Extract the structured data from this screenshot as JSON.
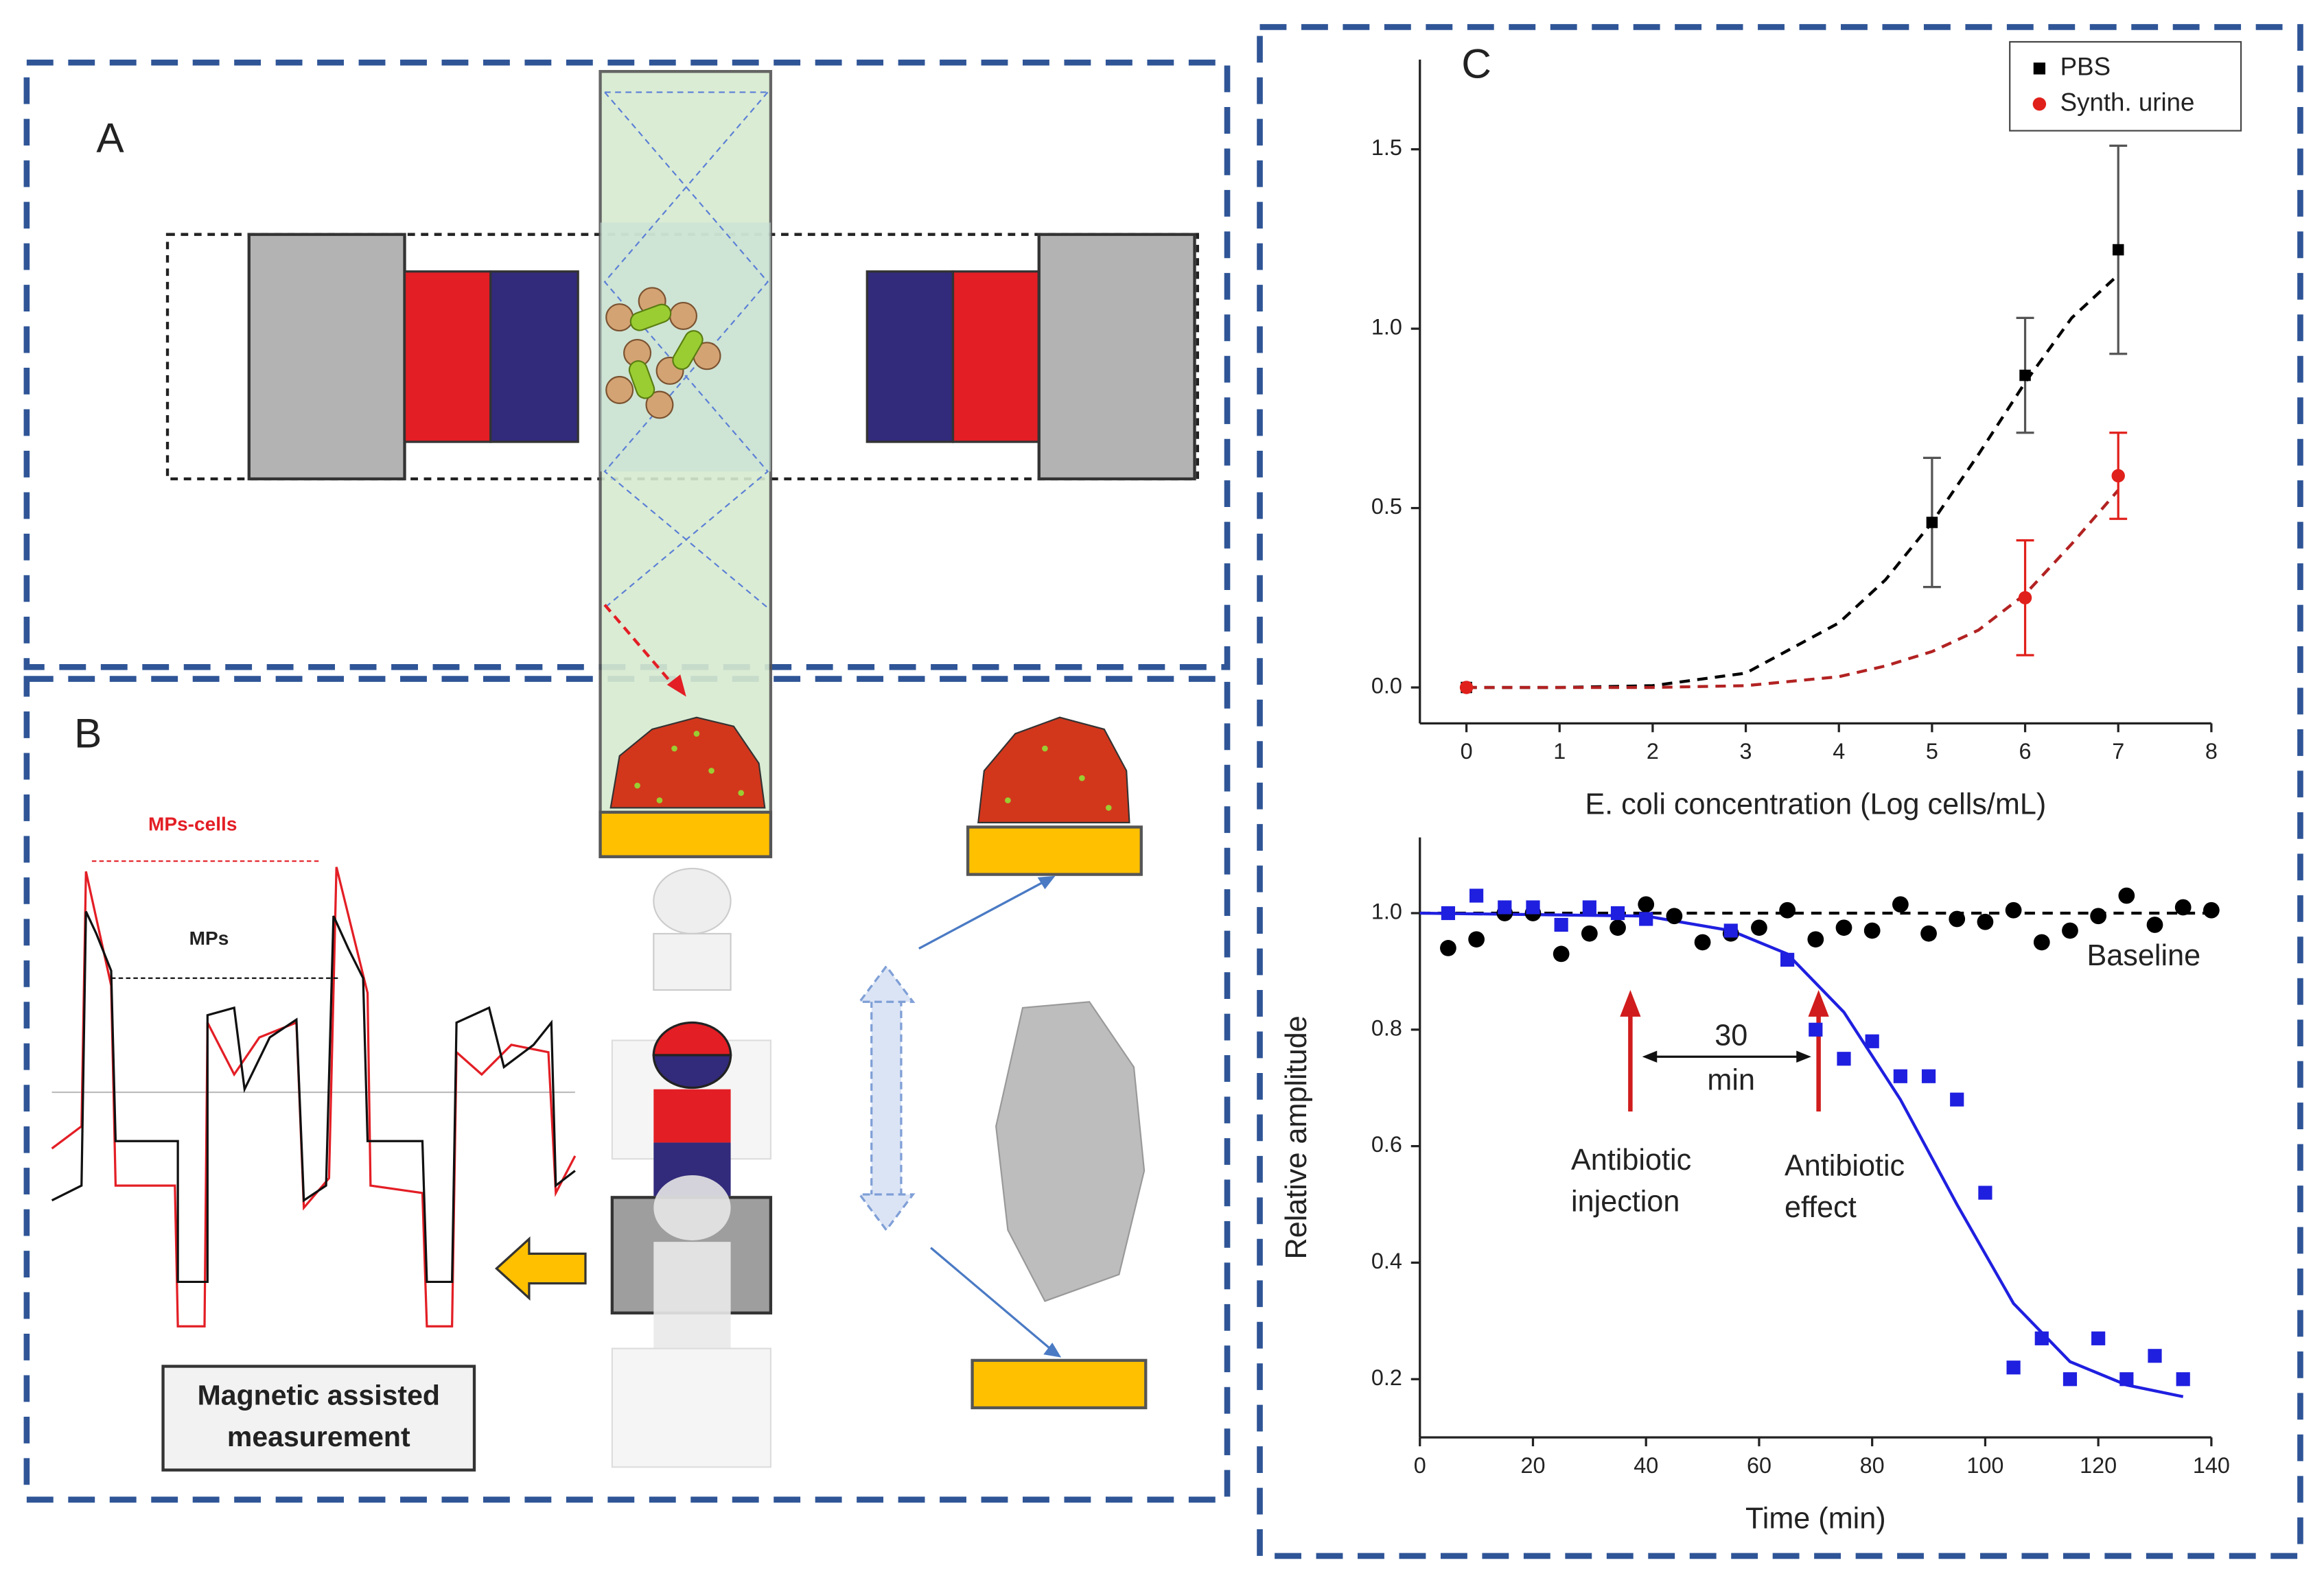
{
  "panels": {
    "a": "A",
    "b": "B",
    "c": "C"
  },
  "diagram": {
    "mps_cells": "MPs-cells",
    "mps": "MPs",
    "measurement": [
      "Magnetic assisted",
      "measurement"
    ]
  },
  "chart_data": [
    {
      "type": "scatter",
      "xlabel": "E. coli concentration (Log cells/mL)",
      "xlim": [
        -0.5,
        8
      ],
      "ylim": [
        -0.1,
        1.75
      ],
      "xticks": [
        0,
        1,
        2,
        3,
        4,
        5,
        6,
        7,
        8
      ],
      "yticks": [
        {
          "value": 0,
          "label": "0.0"
        },
        0.5,
        {
          "value": 1,
          "label": "1.0"
        },
        1.5
      ],
      "legend": "upper right",
      "series": [
        {
          "name": "PBS",
          "color": "#000000",
          "marker": "square",
          "x": [
            0,
            5,
            6,
            7
          ],
          "values": [
            0,
            0.46,
            0.87,
            1.22
          ],
          "errors": [
            0,
            0.18,
            0.16,
            0.29
          ]
        },
        {
          "name": "Synth. urine",
          "color": "#e0201b",
          "marker": "circle",
          "x": [
            0,
            6,
            7
          ],
          "values": [
            0,
            0.25,
            0.59
          ],
          "errors": [
            0,
            0.16,
            0.12
          ]
        }
      ],
      "lines": [
        {
          "color": "#000000",
          "dashed": true,
          "x": [
            0,
            1,
            2,
            3,
            4,
            4.5,
            5,
            5.5,
            6,
            6.5,
            7
          ],
          "values": [
            0,
            0,
            0.005,
            0.04,
            0.18,
            0.3,
            0.46,
            0.65,
            0.85,
            1.03,
            1.15
          ]
        },
        {
          "color": "#b22222",
          "dashed": true,
          "x": [
            0,
            1,
            2,
            3,
            4,
            4.5,
            5,
            5.5,
            6,
            6.5,
            7
          ],
          "values": [
            0,
            0,
            0,
            0.005,
            0.03,
            0.06,
            0.1,
            0.16,
            0.26,
            0.4,
            0.55
          ]
        }
      ]
    },
    {
      "type": "scatter",
      "xlabel": "Time (min)",
      "ylabel": "Relative amplitude",
      "xlim": [
        0,
        140
      ],
      "ylim": [
        0.1,
        1.13
      ],
      "xticks": [
        0,
        20,
        40,
        60,
        80,
        100,
        120,
        140
      ],
      "yticks": [
        0.2,
        0.4,
        0.6,
        0.8,
        {
          "value": 1,
          "label": "1.0"
        }
      ],
      "annotations": {
        "baseline": "Baseline",
        "interval": [
          "30",
          "min"
        ],
        "injection": [
          "Antibiotic",
          "injection"
        ],
        "effect": [
          "Antibiotic",
          "effect"
        ]
      },
      "series": [
        {
          "color": "#000000",
          "marker": "circle",
          "x": [
            5,
            10,
            15,
            20,
            25,
            30,
            35,
            40,
            45,
            50,
            55,
            60,
            65,
            70,
            75,
            80,
            85,
            90,
            95,
            100,
            105,
            110,
            115,
            120,
            125,
            130,
            135,
            140
          ],
          "values": [
            0.94,
            0.955,
            1.0,
            1.0,
            0.93,
            0.965,
            0.975,
            1.015,
            0.995,
            0.95,
            0.965,
            0.975,
            1.005,
            0.955,
            0.975,
            0.97,
            1.015,
            0.965,
            0.99,
            0.985,
            1.005,
            0.95,
            0.97,
            0.995,
            1.03,
            0.98,
            1.01,
            1.005
          ]
        },
        {
          "color": "#1f1fe0",
          "marker": "square",
          "x": [
            5,
            10,
            15,
            20,
            25,
            30,
            35,
            40,
            55,
            65,
            70,
            75,
            80,
            85,
            90,
            95,
            100,
            105,
            110,
            115,
            120,
            125,
            130,
            135
          ],
          "values": [
            1.0,
            1.03,
            1.01,
            1.01,
            0.98,
            1.01,
            1.0,
            0.99,
            0.97,
            0.92,
            0.8,
            0.75,
            0.78,
            0.72,
            0.72,
            0.68,
            0.52,
            0.22,
            0.27,
            0.2,
            0.27,
            0.2,
            0.24,
            0.2
          ]
        }
      ],
      "lines": [
        {
          "color": "#000000",
          "dashed": true,
          "x": [
            0,
            140
          ],
          "values": [
            1.0,
            1.0
          ]
        },
        {
          "color": "#1f1fe0",
          "dashed": false,
          "x": [
            0,
            40,
            55,
            65,
            75,
            85,
            95,
            105,
            115,
            125,
            135
          ],
          "values": [
            1.0,
            0.995,
            0.97,
            0.93,
            0.83,
            0.68,
            0.5,
            0.33,
            0.23,
            0.19,
            0.17
          ]
        }
      ]
    }
  ]
}
